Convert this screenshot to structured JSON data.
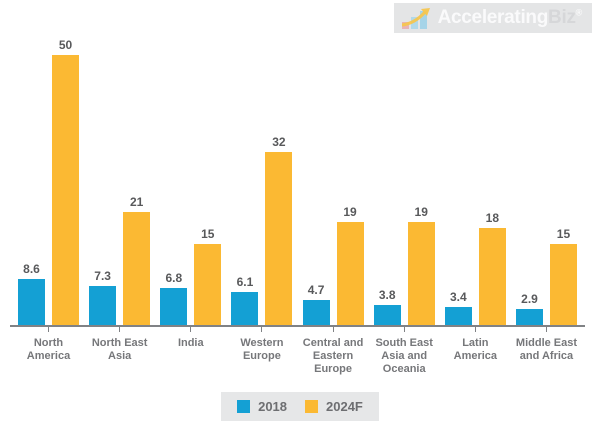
{
  "logo": {
    "brand_primary": "Accelerating",
    "brand_secondary": "Biz",
    "registered_mark": "®",
    "icon": "growth-chart-icon",
    "background": "#E4E5E6"
  },
  "colors": {
    "series_2018": "#14A0D4",
    "series_2024f": "#FBB933",
    "value_label": "#58595B",
    "category_label": "#76777A",
    "axis": "#808285",
    "legend_background": "#E6E7E8"
  },
  "chart_data": {
    "type": "bar",
    "title": "",
    "xlabel": "",
    "ylabel": "",
    "ylim": [
      0,
      50
    ],
    "grid": false,
    "legend_position": "bottom",
    "value_labels": true,
    "categories": [
      "North America",
      "North East Asia",
      "India",
      "Western Europe",
      "Central and Eastern Europe",
      "South East Asia and Oceania",
      "Latin America",
      "Middle East and Africa"
    ],
    "category_label_lines": [
      [
        "North",
        "America"
      ],
      [
        "North East",
        "Asia"
      ],
      [
        "India"
      ],
      [
        "Western",
        "Europe"
      ],
      [
        "Central and",
        "Eastern",
        "Europe"
      ],
      [
        "South East",
        "Asia and",
        "Oceania"
      ],
      [
        "Latin",
        "America"
      ],
      [
        "Middle East",
        "and Africa"
      ]
    ],
    "series": [
      {
        "name": "2018",
        "color": "#14A0D4",
        "values": [
          8.6,
          7.3,
          6.8,
          6.1,
          4.7,
          3.8,
          3.4,
          2.9
        ]
      },
      {
        "name": "2024F",
        "color": "#FBB933",
        "values": [
          50,
          21,
          15,
          32,
          19,
          19,
          18,
          15
        ]
      }
    ]
  }
}
